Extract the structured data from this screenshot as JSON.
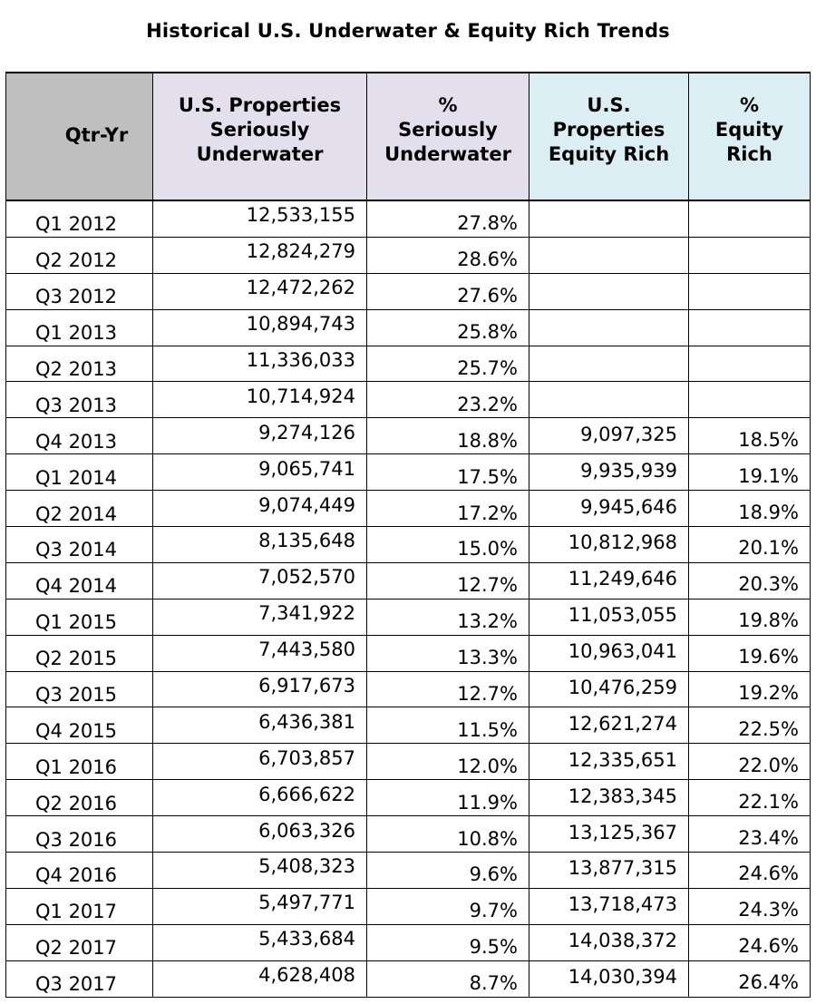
{
  "chart_data": {
    "type": "table",
    "title": "Historical U.S. Underwater & Equity Rich Trends",
    "columns": [
      "Qtr-Yr",
      "U.S. Properties\nSeriously\nUnderwater",
      "%\nSeriously\nUnderwater",
      "U.S.\nProperties\nEquity Rich",
      "%\nEquity\nRich"
    ],
    "rows": [
      [
        "Q1 2012",
        "12,533,155",
        "27.8%",
        "",
        ""
      ],
      [
        "Q2 2012",
        "12,824,279",
        "28.6%",
        "",
        ""
      ],
      [
        "Q3 2012",
        "12,472,262",
        "27.6%",
        "",
        ""
      ],
      [
        "Q1 2013",
        "10,894,743",
        "25.8%",
        "",
        ""
      ],
      [
        "Q2 2013",
        "11,336,033",
        "25.7%",
        "",
        ""
      ],
      [
        "Q3 2013",
        "10,714,924",
        "23.2%",
        "",
        ""
      ],
      [
        "Q4 2013",
        "9,274,126",
        "18.8%",
        "9,097,325",
        "18.5%"
      ],
      [
        "Q1 2014",
        "9,065,741",
        "17.5%",
        "9,935,939",
        "19.1%"
      ],
      [
        "Q2 2014",
        "9,074,449",
        "17.2%",
        "9,945,646",
        "18.9%"
      ],
      [
        "Q3 2014",
        "8,135,648",
        "15.0%",
        "10,812,968",
        "20.1%"
      ],
      [
        "Q4 2014",
        "7,052,570",
        "12.7%",
        "11,249,646",
        "20.3%"
      ],
      [
        "Q1 2015",
        "7,341,922",
        "13.2%",
        "11,053,055",
        "19.8%"
      ],
      [
        "Q2 2015",
        "7,443,580",
        "13.3%",
        "10,963,041",
        "19.6%"
      ],
      [
        "Q3 2015",
        "6,917,673",
        "12.7%",
        "10,476,259",
        "19.2%"
      ],
      [
        "Q4 2015",
        "6,436,381",
        "11.5%",
        "12,621,274",
        "22.5%"
      ],
      [
        "Q1 2016",
        "6,703,857",
        "12.0%",
        "12,335,651",
        "22.0%"
      ],
      [
        "Q2 2016",
        "6,666,622",
        "11.9%",
        "12,383,345",
        "22.1%"
      ],
      [
        "Q3 2016",
        "6,063,326",
        "10.8%",
        "13,125,367",
        "23.4%"
      ],
      [
        "Q4 2016",
        "5,408,323",
        "9.6%",
        "13,877,315",
        "24.6%"
      ],
      [
        "Q1 2017",
        "5,497,771",
        "9.7%",
        "13,718,473",
        "24.3%"
      ],
      [
        "Q2 2017",
        "5,433,684",
        "9.5%",
        "14,038,372",
        "24.6%"
      ],
      [
        "Q3 2017",
        "4,628,408",
        "8.7%",
        "14,030,394",
        "26.4%"
      ]
    ]
  },
  "colors": {
    "qtr_header_bg": "#bfbfbf",
    "underwater_header_bg": "#e4dfec",
    "equity_header_bg": "#daeef3"
  }
}
